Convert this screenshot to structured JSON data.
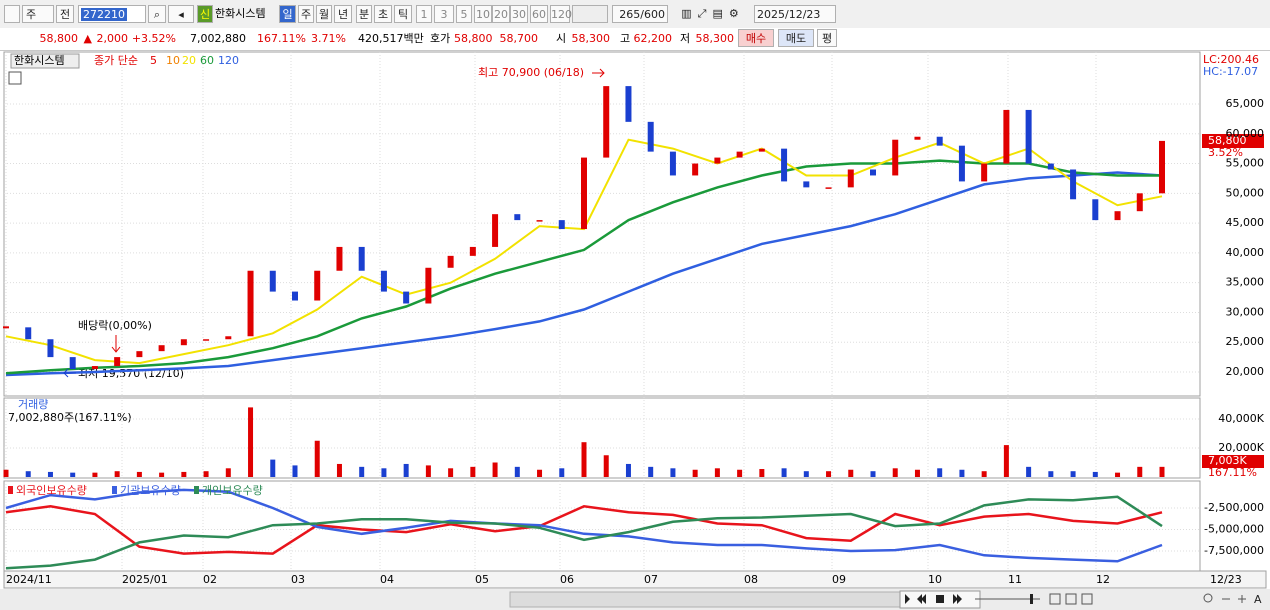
{
  "toolbar": {
    "period": "주",
    "prev": "전",
    "code": "272210",
    "name": "한화시스템",
    "new_badge": "신",
    "intervals": [
      "일",
      "주",
      "월",
      "년",
      "분",
      "초",
      "틱"
    ],
    "minutes": [
      "1",
      "3",
      "5",
      "10",
      "20",
      "30",
      "60",
      "120"
    ],
    "count": "265",
    "count_max": "/600",
    "date": "2025/12/23"
  },
  "quote": {
    "price": "58,800",
    "arrow": "▲",
    "change": "2,000",
    "change_pct": "+3.52%",
    "volume": "7,002,880",
    "volume_ratio": "167.11%",
    "turnover": "3.71%",
    "amount": "420,517백만",
    "ask_label": "호가",
    "ask": "58,800",
    "bid": "58,700",
    "open_label": "시",
    "open": "58,300",
    "high_label": "고",
    "high": "62,200",
    "low_label": "저",
    "low": "58,300",
    "buy": "매수",
    "sell": "매도",
    "avg": "평"
  },
  "chart": {
    "type": "candlestick",
    "name": "한화시스템",
    "ma_label": "종가 단순",
    "ma_periods": [
      5,
      10,
      20,
      60,
      120
    ],
    "ma_colors": [
      "#e00000",
      "#f08000",
      "#f2e200",
      "#1a9a3a",
      "#2f5fe0"
    ],
    "close": [
      27500,
      25500,
      22500,
      20500,
      21000,
      22500,
      23500,
      24500,
      25500,
      25500,
      26000,
      37000,
      33500,
      32000,
      37000,
      41000,
      37000,
      33500,
      31500,
      37500,
      39500,
      41000,
      46500,
      45500,
      45500,
      44000,
      56000,
      68000,
      62000,
      57000,
      53000,
      55000,
      56000,
      57000,
      57500,
      52000,
      51000,
      51000,
      54000,
      53000,
      59000,
      59500,
      58000,
      52000,
      55000,
      64000,
      55000,
      54000,
      49000,
      45500,
      47000,
      50000,
      58800
    ],
    "ma20": [
      26000,
      24500,
      22000,
      21500,
      23000,
      24500,
      26500,
      30500,
      36000,
      33000,
      35000,
      39000,
      44500,
      44000,
      59000,
      57500,
      55000,
      57500,
      53000,
      53000,
      56000,
      58500,
      55000,
      57500,
      52000,
      48000,
      49500
    ],
    "ma60": [
      19800,
      20300,
      20700,
      21000,
      21500,
      22500,
      24000,
      26000,
      29000,
      31000,
      34000,
      36500,
      38500,
      40500,
      45500,
      48500,
      51000,
      53000,
      54500,
      55000,
      55000,
      55500,
      55000,
      55000,
      53500,
      53000,
      53000
    ],
    "ma120": [
      19500,
      19800,
      20000,
      20300,
      20600,
      21000,
      22000,
      23000,
      24000,
      25000,
      26000,
      27200,
      28500,
      30500,
      33500,
      36500,
      39000,
      41500,
      43000,
      44500,
      46500,
      49000,
      51500,
      52500,
      53000,
      53500,
      53000
    ],
    "yticks": [
      {
        "value": 20000,
        "label": "20,000"
      },
      {
        "value": 25000,
        "label": "25,000"
      },
      {
        "value": 30000,
        "label": "30,000"
      },
      {
        "value": 35000,
        "label": "35,000"
      },
      {
        "value": 40000,
        "label": "40,000"
      },
      {
        "value": 45000,
        "label": "45,000"
      },
      {
        "value": 50000,
        "label": "50,000"
      },
      {
        "value": 55000,
        "label": "55,000"
      },
      {
        "value": 60000,
        "label": "60,000"
      },
      {
        "value": 65000,
        "label": "65,000"
      }
    ],
    "high_note": "최고 70,900 (06/18)",
    "low_note": "최저 19,570 (12/10)",
    "dividend_note": "배당락(0,00%)",
    "lc": "LC:200.46",
    "hc": "HC:-17.07",
    "last_price": "58,800",
    "last_pct": "3.52%",
    "volume_title": "거래량",
    "volume_note": "7,002,880주(167.11%)",
    "volume_last": "7,003K",
    "volume_pct": "167.11%",
    "volume": [
      5000,
      4000,
      3500,
      3000,
      3000,
      4000,
      3500,
      3000,
      3500,
      4000,
      6000,
      48000,
      12000,
      8000,
      25000,
      9000,
      7000,
      6000,
      9000,
      8000,
      6000,
      7000,
      10000,
      7000,
      5000,
      6000,
      24000,
      15000,
      9000,
      7000,
      6000,
      5000,
      6000,
      5000,
      5500,
      6000,
      4000,
      4000,
      5000,
      4000,
      6000,
      5000,
      6000,
      5000,
      4000,
      22000,
      7000,
      4000,
      4000,
      3500,
      3000,
      7000,
      7003
    ],
    "volume_yticks": [
      {
        "value": 20000,
        "label": "20,000K"
      },
      {
        "value": 40000,
        "label": "40,000K"
      }
    ],
    "holders": [
      {
        "name": "외국인보유수량",
        "color": "#e8141c",
        "values": [
          -3000000,
          -2300000,
          -3200000,
          -7000000,
          -7800000,
          -7600000,
          -7800000,
          -4500000,
          -5000000,
          -5300000,
          -4400000,
          -5200000,
          -4600000,
          -2300000,
          -3000000,
          -3300000,
          -4300000,
          -4500000,
          -6000000,
          -6300000,
          -3200000,
          -4500000,
          -3500000,
          -3200000,
          -4000000,
          -4300000,
          -3000000
        ]
      },
      {
        "name": "기관보유수량",
        "color": "#3a5fe0",
        "values": [
          -2500000,
          -1000000,
          -1500000,
          -700000,
          -400000,
          -600000,
          -2500000,
          -4700000,
          -5500000,
          -4800000,
          -4000000,
          -4300000,
          -4500000,
          -5500000,
          -5800000,
          -6500000,
          -6800000,
          -6800000,
          -7200000,
          -7500000,
          -7400000,
          -6800000,
          -8000000,
          -8300000,
          -8500000,
          -8700000,
          -6800000
        ]
      },
      {
        "name": "개인보유수량",
        "color": "#2e8b57",
        "values": [
          -9500000,
          -9200000,
          -8500000,
          -6500000,
          -5700000,
          -5900000,
          -4500000,
          -4300000,
          -3800000,
          -3800000,
          -4200000,
          -4300000,
          -4800000,
          -6200000,
          -5300000,
          -4100000,
          -3700000,
          -3600000,
          -3400000,
          -3200000,
          -4600000,
          -4300000,
          -2200000,
          -1500000,
          -1600000,
          -1200000,
          -4600000
        ]
      }
    ],
    "holder_yticks": [
      {
        "value": -2500000,
        "label": "-2,500,000"
      },
      {
        "value": -5000000,
        "label": "-5,000,000"
      },
      {
        "value": -7500000,
        "label": "-7,500,000"
      }
    ],
    "months": [
      "2024/11",
      "2025/01",
      "02",
      "03",
      "04",
      "05",
      "06",
      "07",
      "08",
      "09",
      "10",
      "11",
      "12"
    ],
    "last_date": "12/23"
  }
}
